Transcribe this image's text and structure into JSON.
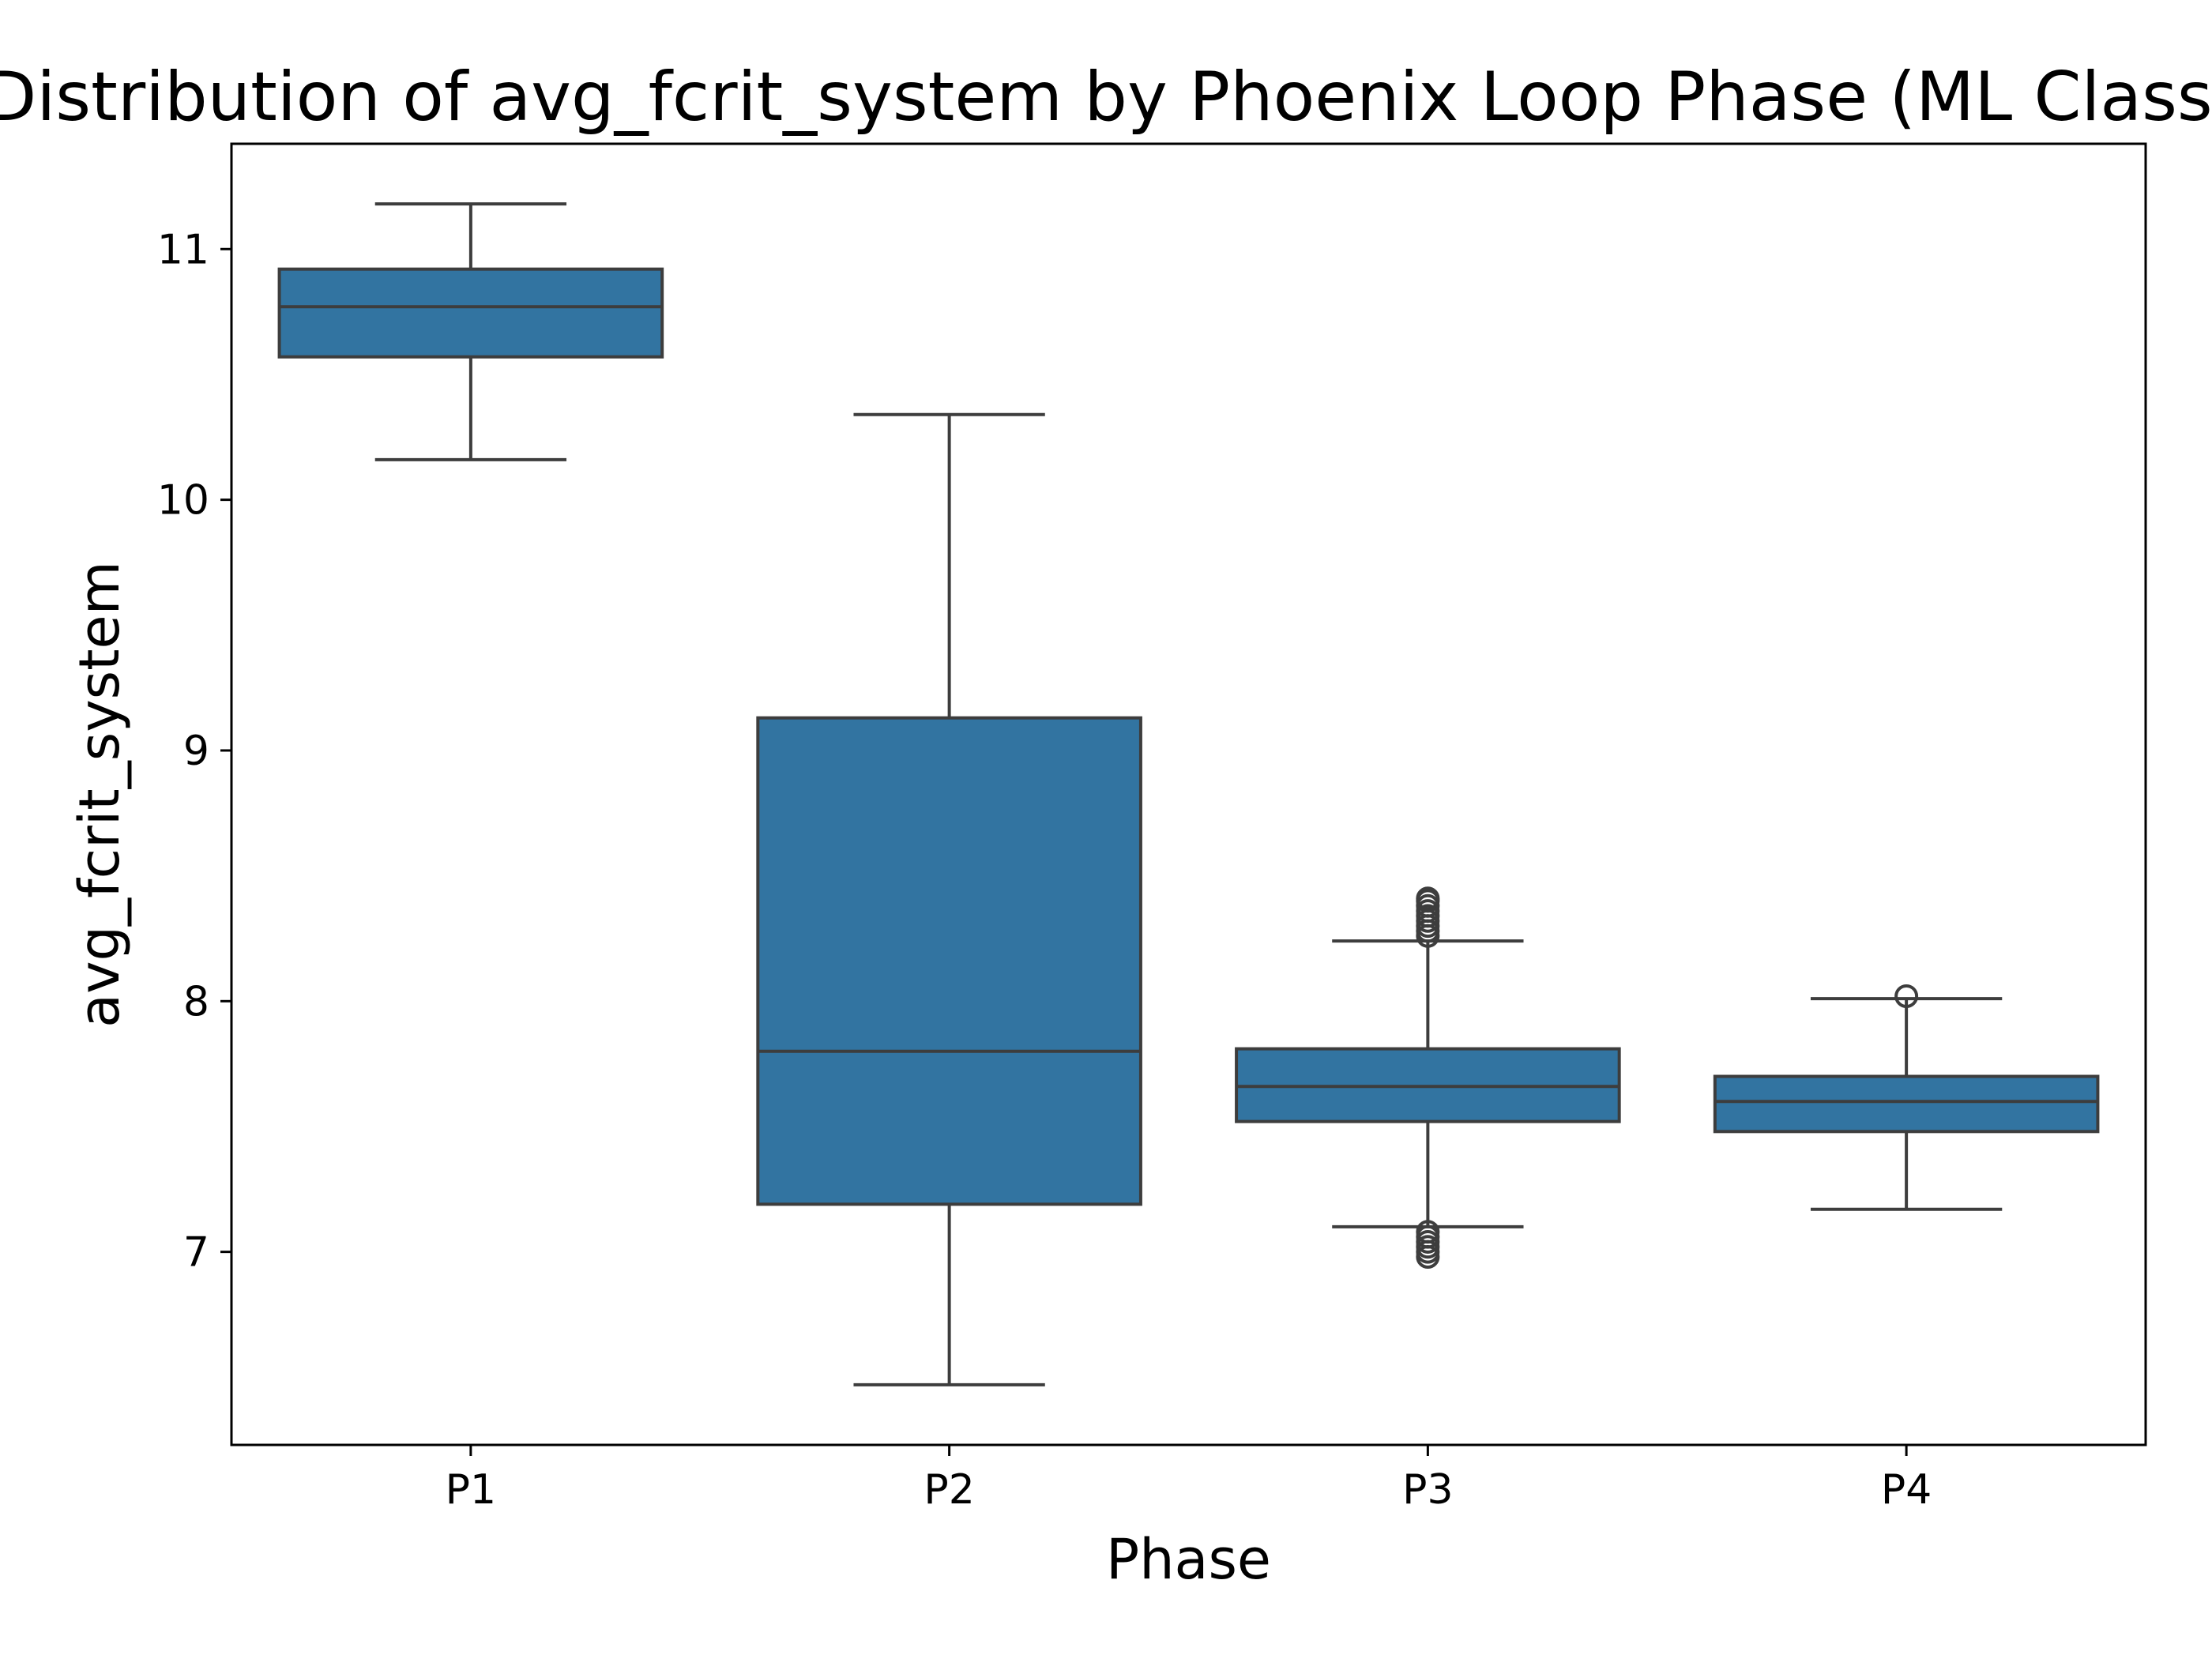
{
  "chart_data": {
    "type": "box",
    "title": "Distribution of avg_fcrit_system by Phoenix Loop Phase (ML Classified)",
    "xlabel": "Phase",
    "ylabel": "avg_fcrit_system",
    "categories": [
      "P1",
      "P2",
      "P3",
      "P4"
    ],
    "yticks": [
      7,
      8,
      9,
      10,
      11
    ],
    "ylim": [
      6.23,
      11.42
    ],
    "grid": false,
    "legend": "none",
    "box_color": "#3274a1",
    "line_color": "#3d3d3d",
    "boxes": [
      {
        "category": "P1",
        "whisker_low": 10.16,
        "q1": 10.57,
        "median": 10.77,
        "q3": 10.92,
        "whisker_high": 11.18,
        "outliers": []
      },
      {
        "category": "P2",
        "whisker_low": 6.47,
        "q1": 7.19,
        "median": 7.8,
        "q3": 9.13,
        "whisker_high": 10.34,
        "outliers": []
      },
      {
        "category": "P3",
        "whisker_low": 7.1,
        "q1": 7.52,
        "median": 7.66,
        "q3": 7.81,
        "whisker_high": 8.24,
        "outliers": [
          6.98,
          7.0,
          7.02,
          7.04,
          7.06,
          7.08,
          8.26,
          8.28,
          8.3,
          8.32,
          8.34,
          8.36,
          8.38,
          8.4,
          8.41
        ]
      },
      {
        "category": "P4",
        "whisker_low": 7.17,
        "q1": 7.48,
        "median": 7.6,
        "q3": 7.7,
        "whisker_high": 8.01,
        "outliers": [
          8.02
        ]
      }
    ]
  }
}
